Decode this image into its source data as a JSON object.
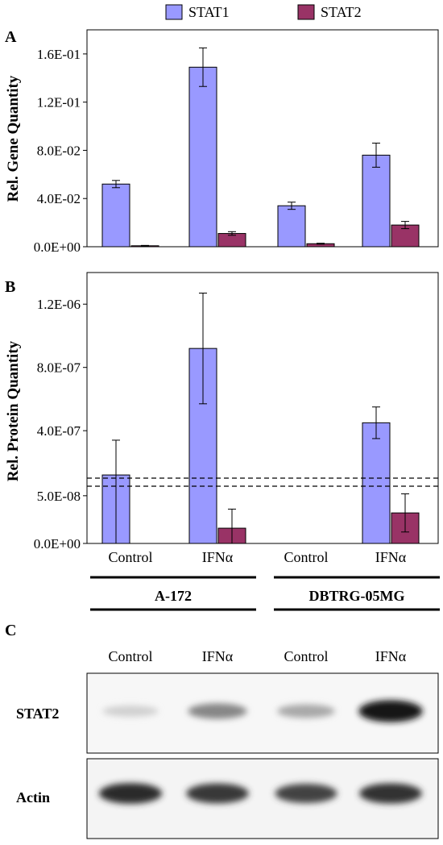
{
  "legend": [
    {
      "label": "STAT1",
      "color": "#9999ff"
    },
    {
      "label": "STAT2",
      "color": "#993366"
    }
  ],
  "panels": {
    "a": {
      "letter": "A"
    },
    "b": {
      "letter": "B"
    },
    "c": {
      "letter": "C"
    }
  },
  "chart_data": [
    {
      "type": "bar",
      "panel": "A",
      "ylabel": "Rel. Gene Quantity",
      "xlabel": "",
      "categories": [
        "A-172 Control",
        "A-172 IFNα",
        "DBTRG-05MG Control",
        "DBTRG-05MG IFNα"
      ],
      "ylim": [
        0,
        0.18
      ],
      "ticks": [
        0,
        0.04,
        0.08,
        0.12,
        0.16
      ],
      "tick_labels": [
        "0.0E+00",
        "4.0E-02",
        "8.0E-02",
        "1.2E-01",
        "1.6E-01"
      ],
      "series": [
        {
          "name": "STAT1",
          "color": "#9999ff",
          "values": [
            0.052,
            0.149,
            0.034,
            0.076
          ],
          "errors": [
            0.003,
            0.016,
            0.003,
            0.01
          ]
        },
        {
          "name": "STAT2",
          "color": "#993366",
          "values": [
            0.0008,
            0.011,
            0.0025,
            0.018
          ],
          "errors": [
            0.0003,
            0.0015,
            0.0004,
            0.003
          ]
        }
      ]
    },
    {
      "type": "bar",
      "panel": "B",
      "ylabel": "Rel. Protein Quantity",
      "xlabel": "",
      "categories": [
        "Control",
        "IFNα",
        "Control",
        "IFNα"
      ],
      "axis_break": true,
      "lower_ylim": [
        0,
        6e-08
      ],
      "lower_ticks": [
        0,
        5e-08
      ],
      "lower_tick_labels": [
        "0.0E+00",
        "5.0E-08"
      ],
      "upper_ylim": [
        1e-07,
        1.4e-06
      ],
      "upper_ticks": [
        4e-07,
        8e-07,
        1.2e-06
      ],
      "upper_tick_labels": [
        "4.0E-07",
        "8.0E-07",
        "1.2E-06"
      ],
      "series": [
        {
          "name": "STAT1",
          "color": "#9999ff",
          "values": [
            1.2e-07,
            9.2e-07,
            null,
            4.5e-07
          ],
          "errors": [
            2.2e-07,
            3.5e-07,
            null,
            1e-07
          ]
        },
        {
          "name": "STAT2",
          "color": "#993366",
          "values": [
            null,
            1.6e-08,
            null,
            3.2e-08
          ],
          "errors": [
            null,
            2e-08,
            null,
            2e-08
          ]
        }
      ]
    }
  ],
  "groups": [
    {
      "label": "A-172"
    },
    {
      "label": "DBTRG-05MG"
    }
  ],
  "blot": {
    "lane_labels": [
      "Control",
      "IFNα",
      "Control",
      "IFNα"
    ],
    "rows": [
      {
        "label": "STAT2",
        "intensities": [
          0.12,
          0.45,
          0.3,
          0.95
        ]
      },
      {
        "label": "Actin",
        "intensities": [
          0.85,
          0.8,
          0.75,
          0.82
        ]
      }
    ]
  }
}
